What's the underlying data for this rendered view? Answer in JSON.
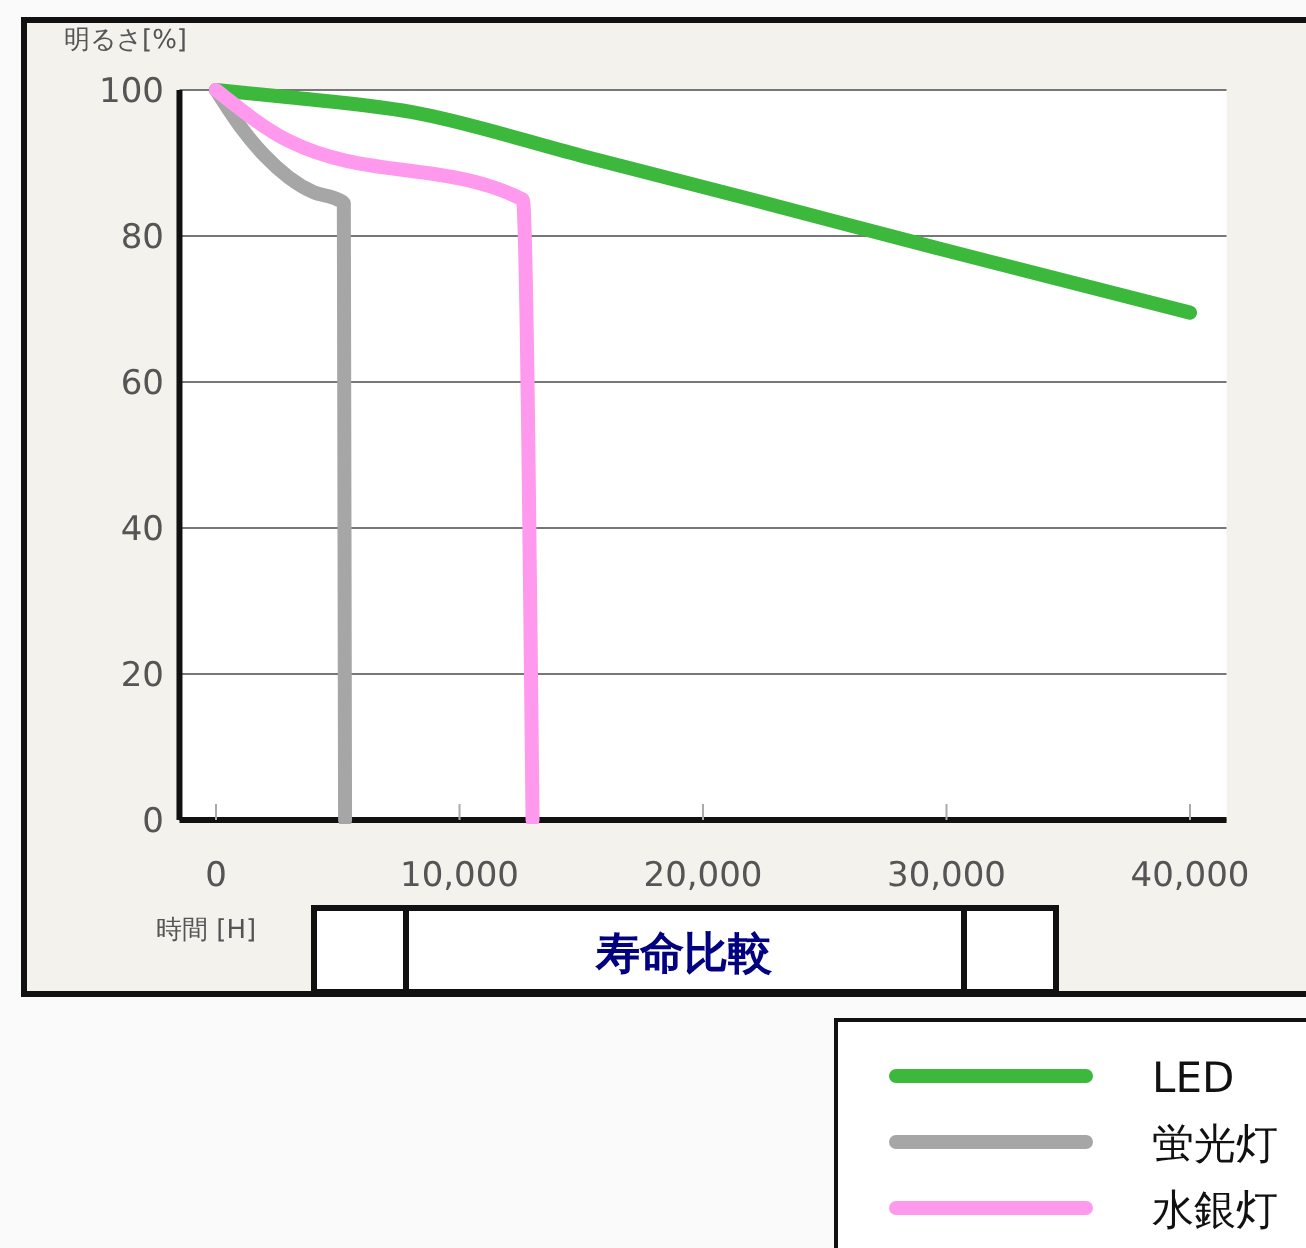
{
  "chart_data": {
    "type": "line",
    "title": "寿命比較",
    "xlabel": "時間 [H]",
    "ylabel": "明るさ[%]",
    "xlim": [
      -1500,
      41500
    ],
    "xticks": [
      {
        "value": 0,
        "label": "0"
      },
      {
        "value": 10000,
        "label": "10,000"
      },
      {
        "value": 20000,
        "label": "20,000"
      },
      {
        "value": 30000,
        "label": "30,000"
      },
      {
        "value": 40000,
        "label": "40,000"
      }
    ],
    "ylim": [
      0,
      100
    ],
    "yticks": [
      0,
      20,
      40,
      60,
      80,
      100
    ],
    "grid": "y",
    "legend": "bottom right",
    "marker": "none",
    "line_style": "solid",
    "series": [
      {
        "name": "LED",
        "color": "#3cb93c",
        "x": [
          0,
          3000,
          8000,
          15000,
          22000,
          30000,
          40000
        ],
        "values": [
          100,
          99,
          97,
          91,
          85,
          78,
          69.5
        ]
      },
      {
        "name": "蛍光灯",
        "color": "#a6a6a6",
        "x": [
          0,
          1000,
          2000,
          3000,
          4000,
          5000,
          5250,
          5300
        ],
        "values": [
          100,
          95,
          91,
          88,
          86,
          85,
          84.5,
          0
        ]
      },
      {
        "name": "水銀灯",
        "color": "#ff99ee",
        "x": [
          0,
          3000,
          12600,
          13000
        ],
        "values": [
          100,
          93,
          85,
          0
        ]
      }
    ]
  }
}
